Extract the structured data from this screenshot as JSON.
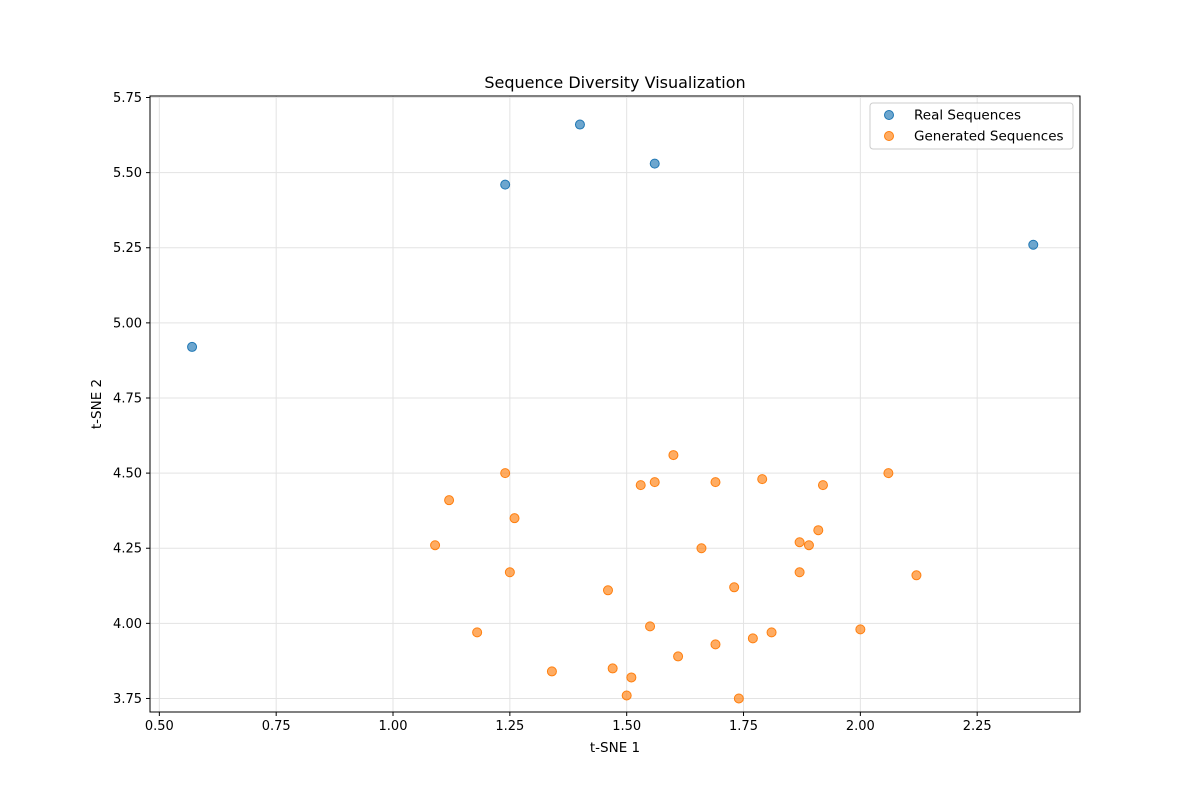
{
  "chart_data": {
    "type": "scatter",
    "title": "Sequence Diversity Visualization",
    "xlabel": "t-SNE 1",
    "ylabel": "t-SNE 2",
    "xlim": [
      0.48,
      2.47
    ],
    "ylim": [
      3.705,
      5.755
    ],
    "xticks": [
      "0.50",
      "0.75",
      "1.00",
      "1.25",
      "1.50",
      "1.75",
      "2.00",
      "2.25"
    ],
    "yticks": [
      "3.75",
      "4.00",
      "4.25",
      "4.50",
      "4.75",
      "5.00",
      "5.25",
      "5.50",
      "5.75"
    ],
    "grid": true,
    "legend_position": "top-right",
    "series": [
      {
        "name": "Real Sequences",
        "color": "#1f77b4",
        "points": [
          [
            0.57,
            4.92
          ],
          [
            1.24,
            5.46
          ],
          [
            1.4,
            5.66
          ],
          [
            1.56,
            5.53
          ],
          [
            2.37,
            5.26
          ]
        ]
      },
      {
        "name": "Generated Sequences",
        "color": "#ff7f0e",
        "points": [
          [
            1.6,
            4.56
          ],
          [
            1.24,
            4.5
          ],
          [
            2.06,
            4.5
          ],
          [
            1.79,
            4.48
          ],
          [
            1.56,
            4.47
          ],
          [
            1.69,
            4.47
          ],
          [
            1.53,
            4.46
          ],
          [
            1.92,
            4.46
          ],
          [
            1.12,
            4.41
          ],
          [
            1.26,
            4.35
          ],
          [
            1.91,
            4.31
          ],
          [
            1.87,
            4.27
          ],
          [
            1.89,
            4.26
          ],
          [
            1.09,
            4.26
          ],
          [
            1.66,
            4.25
          ],
          [
            1.25,
            4.17
          ],
          [
            1.87,
            4.17
          ],
          [
            2.12,
            4.16
          ],
          [
            1.73,
            4.12
          ],
          [
            1.46,
            4.11
          ],
          [
            1.55,
            3.99
          ],
          [
            2.0,
            3.98
          ],
          [
            1.18,
            3.97
          ],
          [
            1.81,
            3.97
          ],
          [
            1.77,
            3.95
          ],
          [
            1.69,
            3.93
          ],
          [
            1.61,
            3.89
          ],
          [
            1.47,
            3.85
          ],
          [
            1.34,
            3.84
          ],
          [
            1.51,
            3.82
          ],
          [
            1.5,
            3.76
          ],
          [
            1.74,
            3.75
          ]
        ]
      }
    ]
  }
}
